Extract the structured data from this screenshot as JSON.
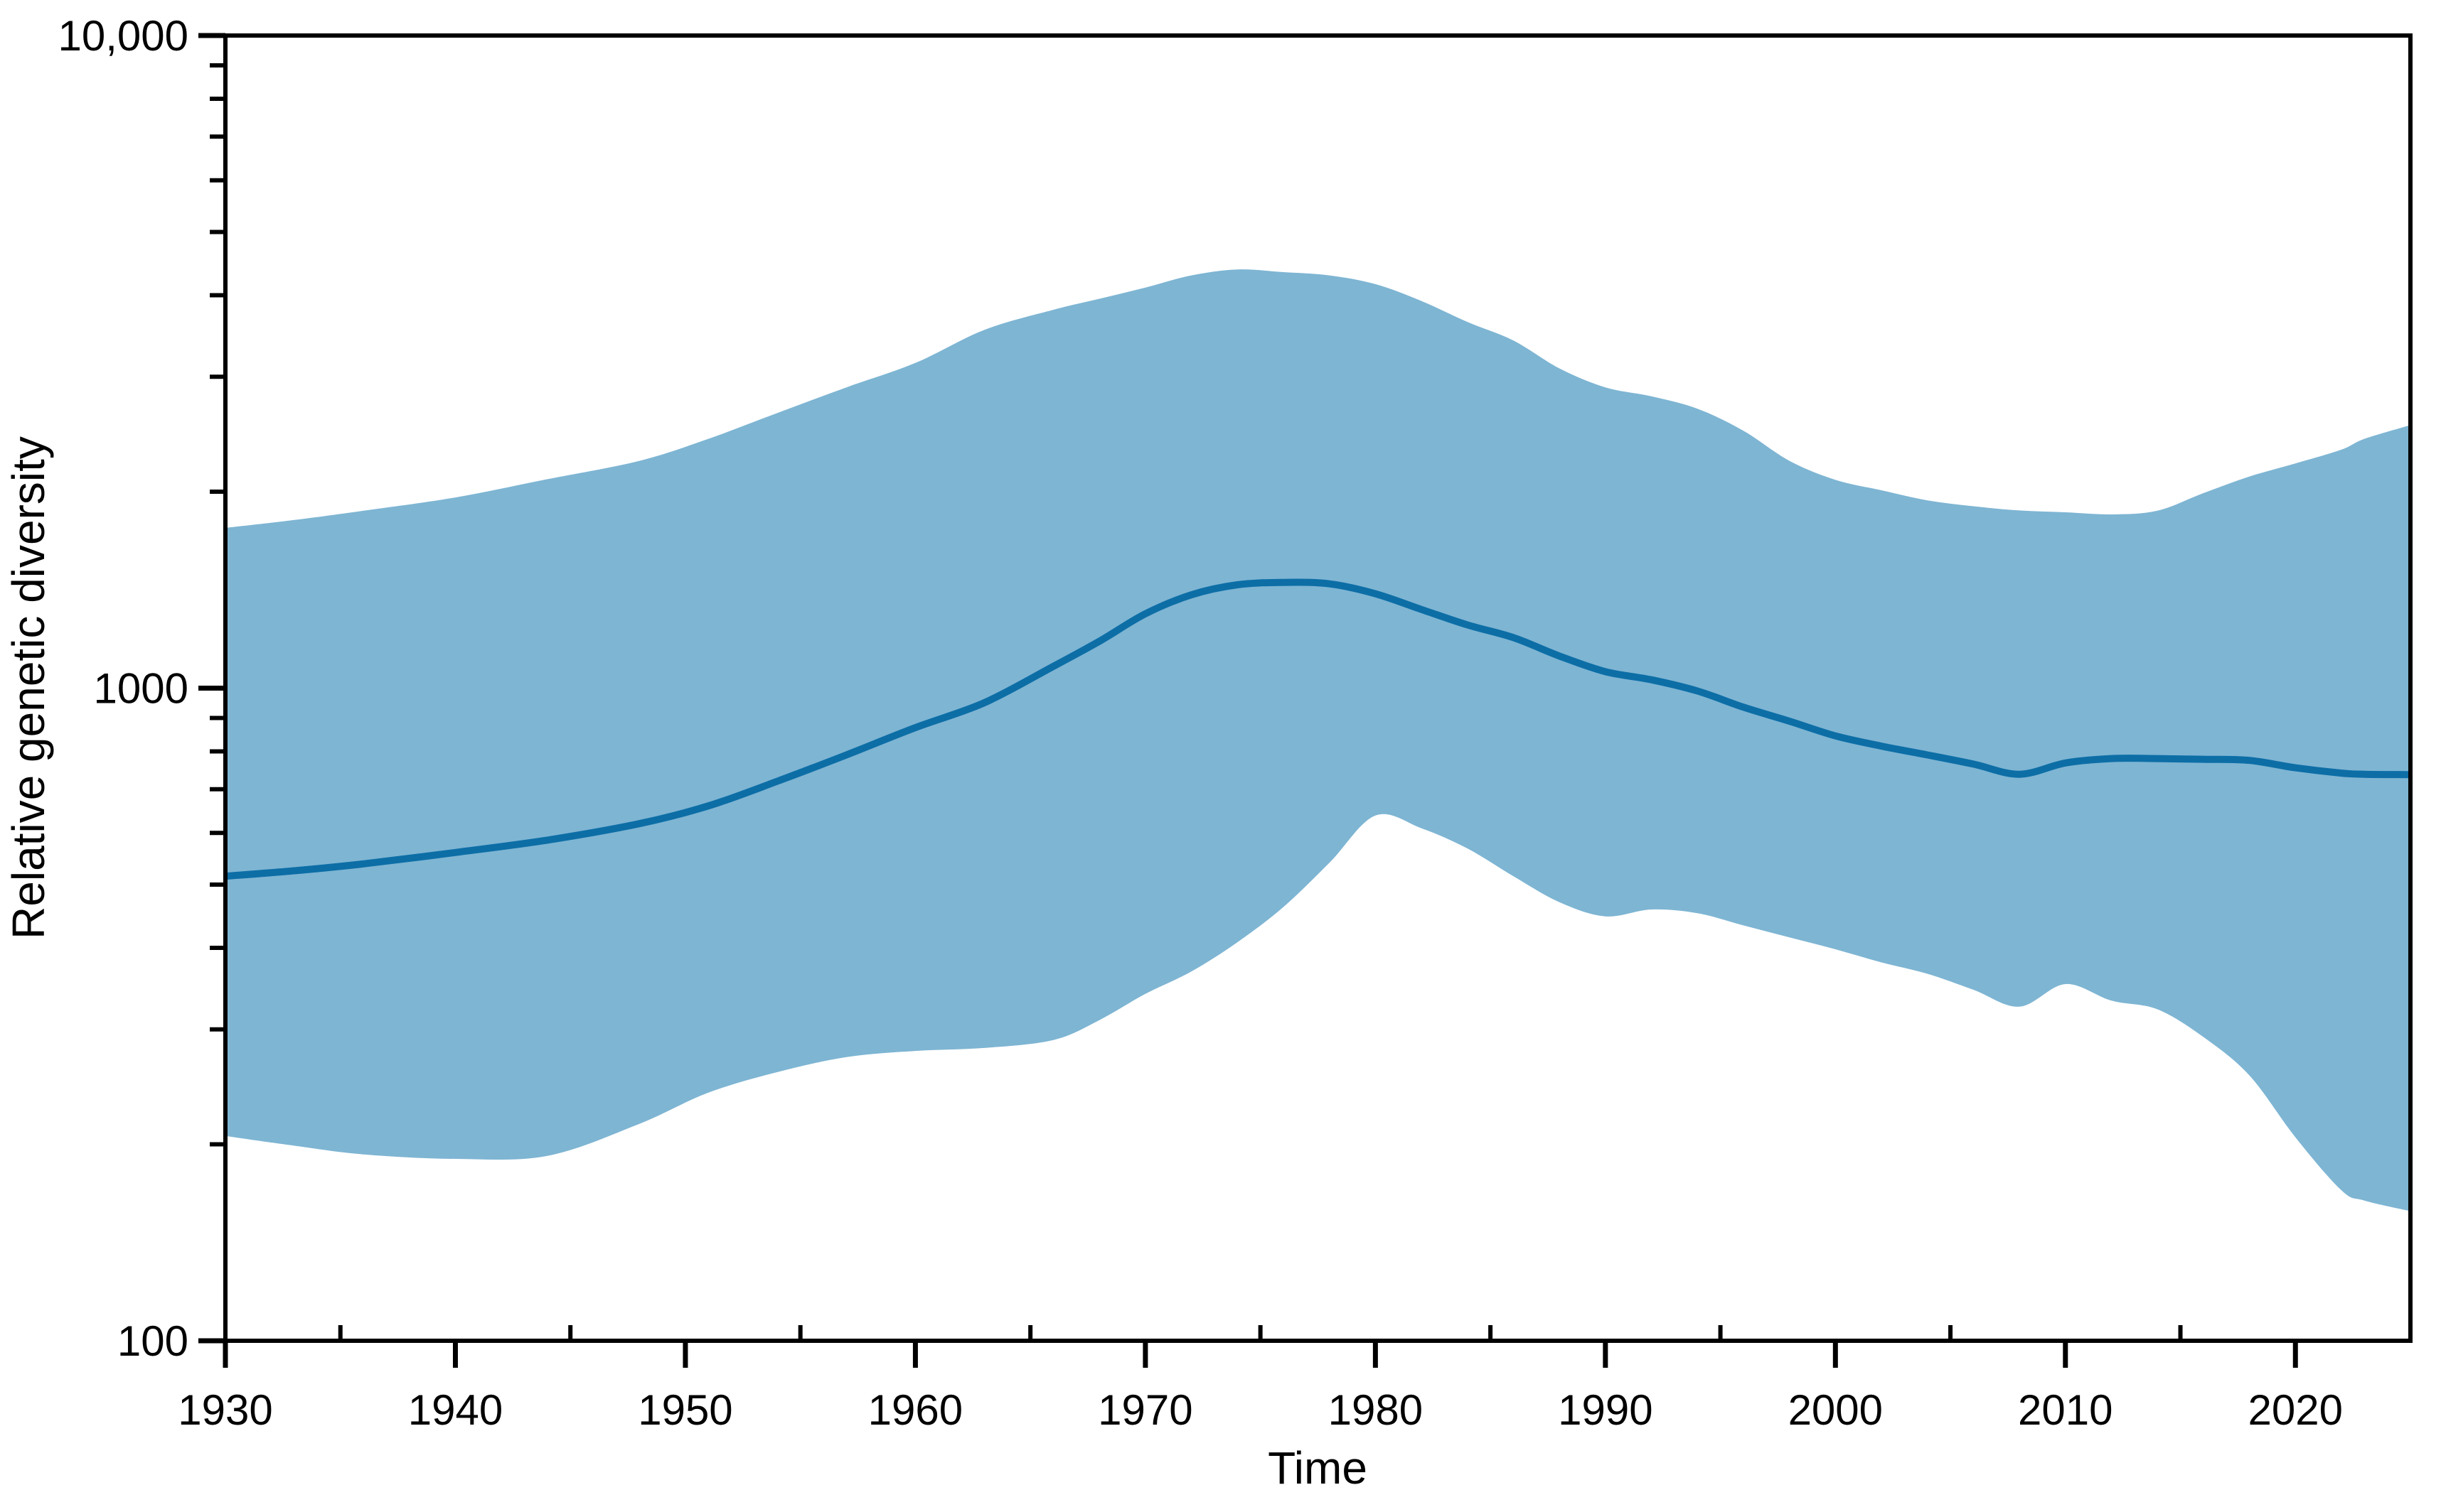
{
  "chart_data": {
    "type": "line",
    "title": "",
    "xlabel": "Time",
    "ylabel": "Relative genetic diversity",
    "x_range": [
      1930,
      2025
    ],
    "y_scale": "log",
    "y_range": [
      100,
      10000
    ],
    "grid": "off",
    "legend": "none",
    "colors": {
      "band_fill": "#7EB5D3",
      "median_line": "#0D6EA6",
      "axis": "#000000"
    },
    "x_major_ticks": [
      1930,
      1940,
      1950,
      1960,
      1970,
      1980,
      1990,
      2000,
      2010,
      2020
    ],
    "x_minor_ticks": [
      1935,
      1945,
      1955,
      1965,
      1975,
      1985,
      1995,
      2005,
      2015,
      2025
    ],
    "y_major_ticks": [
      {
        "value": 100,
        "label": "100"
      },
      {
        "value": 1000,
        "label": "1000"
      },
      {
        "value": 10000,
        "label": "10,000"
      }
    ],
    "y_minor_ticks": [
      200,
      300,
      400,
      500,
      600,
      700,
      800,
      900,
      2000,
      3000,
      4000,
      5000,
      6000,
      7000,
      8000,
      9000
    ],
    "x": [
      1930,
      1933,
      1936,
      1940,
      1944,
      1948,
      1951,
      1954,
      1957,
      1960,
      1963,
      1966,
      1968,
      1970,
      1972,
      1974,
      1976,
      1978,
      1980,
      1982,
      1984,
      1986,
      1988,
      1990,
      1992,
      1994,
      1996,
      1998,
      2000,
      2002,
      2004,
      2006,
      2008,
      2010,
      2012,
      2014,
      2016,
      2018,
      2020,
      2022,
      2023,
      2025
    ],
    "series": [
      {
        "name": "median relative genetic diversity",
        "type": "line",
        "values": [
          515,
          525,
          538,
          560,
          585,
          620,
          660,
          720,
          790,
          870,
          950,
          1080,
          1180,
          1300,
          1390,
          1440,
          1452,
          1445,
          1395,
          1320,
          1250,
          1195,
          1120,
          1060,
          1030,
          990,
          935,
          890,
          845,
          815,
          790,
          765,
          738,
          768,
          780,
          780,
          778,
          775,
          755,
          741,
          738,
          737
        ]
      },
      {
        "name": "uncertainty band",
        "type": "band",
        "lower": [
          206,
          199,
          193,
          190,
          192,
          215,
          240,
          258,
          272,
          278,
          281,
          289,
          310,
          340,
          368,
          408,
          462,
          540,
          638,
          610,
          568,
          515,
          470,
          447,
          458,
          452,
          433,
          415,
          398,
          380,
          365,
          345,
          325,
          352,
          332,
          322,
          292,
          255,
          205,
          170,
          164,
          158
        ],
        "upper": [
          1760,
          1810,
          1870,
          1960,
          2090,
          2230,
          2410,
          2640,
          2890,
          3150,
          3540,
          3800,
          3950,
          4110,
          4290,
          4380,
          4340,
          4290,
          4160,
          3920,
          3640,
          3410,
          3090,
          2890,
          2800,
          2680,
          2480,
          2230,
          2085,
          2010,
          1940,
          1900,
          1872,
          1860,
          1846,
          1870,
          1990,
          2110,
          2210,
          2320,
          2410,
          2530
        ]
      }
    ]
  }
}
